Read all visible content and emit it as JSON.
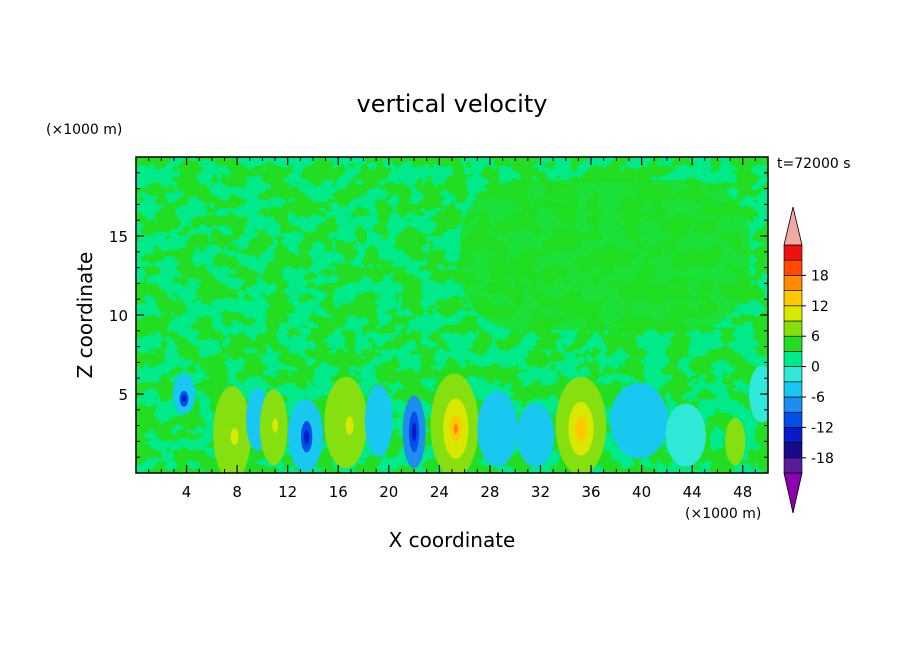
{
  "chart_data": {
    "type": "heatmap",
    "title": "vertical velocity",
    "xlabel": "X coordinate",
    "ylabel": "Z coordinate",
    "x_unit": "(×1000 m)",
    "y_unit": "(×1000 m)",
    "time_label": "t=72000 s",
    "xlim": [
      0,
      50
    ],
    "ylim": [
      0,
      20
    ],
    "x_ticks": [
      4,
      8,
      12,
      16,
      20,
      24,
      28,
      32,
      36,
      40,
      44,
      48
    ],
    "y_ticks": [
      5,
      10,
      15
    ],
    "colorbar": {
      "levels": [
        -21,
        -18,
        -15,
        -12,
        -9,
        -6,
        -3,
        0,
        3,
        6,
        9,
        12,
        15,
        18,
        21
      ],
      "labels": [
        18,
        12,
        6,
        0,
        -6,
        -12,
        -18
      ],
      "colors": [
        "#5a1a9a",
        "#1a0a8a",
        "#0a1ac8",
        "#0050e8",
        "#1e8cf0",
        "#18c8f0",
        "#30e8d8",
        "#00ea8a",
        "#22dd22",
        "#86e010",
        "#d8e800",
        "#ffc800",
        "#ff8c00",
        "#ff4a00",
        "#ee1111"
      ],
      "extend_high_color": "#f4a8a4",
      "extend_low_color": "#8c00b0"
    },
    "background_level_color": "#00ea8a",
    "features": [
      {
        "x": 2.3,
        "z": 5.4,
        "rx": 0.45,
        "rz": 0.9,
        "v": 4
      },
      {
        "x": 3.8,
        "z": 5.0,
        "rx": 0.9,
        "rz": 1.3,
        "v": -5
      },
      {
        "x": 3.8,
        "z": 4.7,
        "rx": 0.35,
        "rz": 0.5,
        "v": -10
      },
      {
        "x": 6.6,
        "z": 6.1,
        "rx": 0.7,
        "rz": 1.0,
        "v": 3
      },
      {
        "x": 7.6,
        "z": 2.5,
        "rx": 1.5,
        "rz": 3.0,
        "v": 6
      },
      {
        "x": 7.8,
        "z": 2.3,
        "rx": 0.7,
        "rz": 1.2,
        "v": 8
      },
      {
        "x": 9.6,
        "z": 3.4,
        "rx": 0.9,
        "rz": 2.0,
        "v": -5
      },
      {
        "x": 10.9,
        "z": 2.9,
        "rx": 1.1,
        "rz": 2.4,
        "v": 6
      },
      {
        "x": 11.0,
        "z": 3.0,
        "rx": 0.5,
        "rz": 1.0,
        "v": 8
      },
      {
        "x": 13.4,
        "z": 2.4,
        "rx": 1.4,
        "rz": 2.3,
        "v": -6
      },
      {
        "x": 13.5,
        "z": 2.3,
        "rx": 0.45,
        "rz": 1.0,
        "v": -11
      },
      {
        "x": 16.6,
        "z": 3.2,
        "rx": 1.7,
        "rz": 2.9,
        "v": 6
      },
      {
        "x": 16.9,
        "z": 3.0,
        "rx": 0.7,
        "rz": 1.3,
        "v": 8
      },
      {
        "x": 19.2,
        "z": 3.3,
        "rx": 1.1,
        "rz": 2.3,
        "v": -5
      },
      {
        "x": 22.0,
        "z": 2.6,
        "rx": 0.9,
        "rz": 2.3,
        "v": -8
      },
      {
        "x": 22.0,
        "z": 2.6,
        "rx": 0.4,
        "rz": 1.3,
        "v": -12
      },
      {
        "x": 25.2,
        "z": 3.0,
        "rx": 1.9,
        "rz": 3.3,
        "v": 6
      },
      {
        "x": 25.3,
        "z": 2.8,
        "rx": 1.0,
        "rz": 1.9,
        "v": 9
      },
      {
        "x": 25.3,
        "z": 2.8,
        "rx": 0.4,
        "rz": 0.7,
        "v": 12
      },
      {
        "x": 28.6,
        "z": 2.8,
        "rx": 1.6,
        "rz": 2.4,
        "v": -5
      },
      {
        "x": 31.6,
        "z": 2.4,
        "rx": 1.5,
        "rz": 2.0,
        "v": -4
      },
      {
        "x": 35.2,
        "z": 3.0,
        "rx": 2.0,
        "rz": 3.1,
        "v": 6
      },
      {
        "x": 35.2,
        "z": 2.8,
        "rx": 1.0,
        "rz": 1.7,
        "v": 9
      },
      {
        "x": 39.8,
        "z": 3.3,
        "rx": 2.3,
        "rz": 2.4,
        "v": -4
      },
      {
        "x": 43.5,
        "z": 2.4,
        "rx": 1.6,
        "rz": 2.0,
        "v": -3
      },
      {
        "x": 47.4,
        "z": 2.0,
        "rx": 0.8,
        "rz": 1.5,
        "v": 6
      },
      {
        "x": 49.5,
        "z": 5.0,
        "rx": 1.0,
        "rz": 1.8,
        "v": -3
      }
    ]
  }
}
